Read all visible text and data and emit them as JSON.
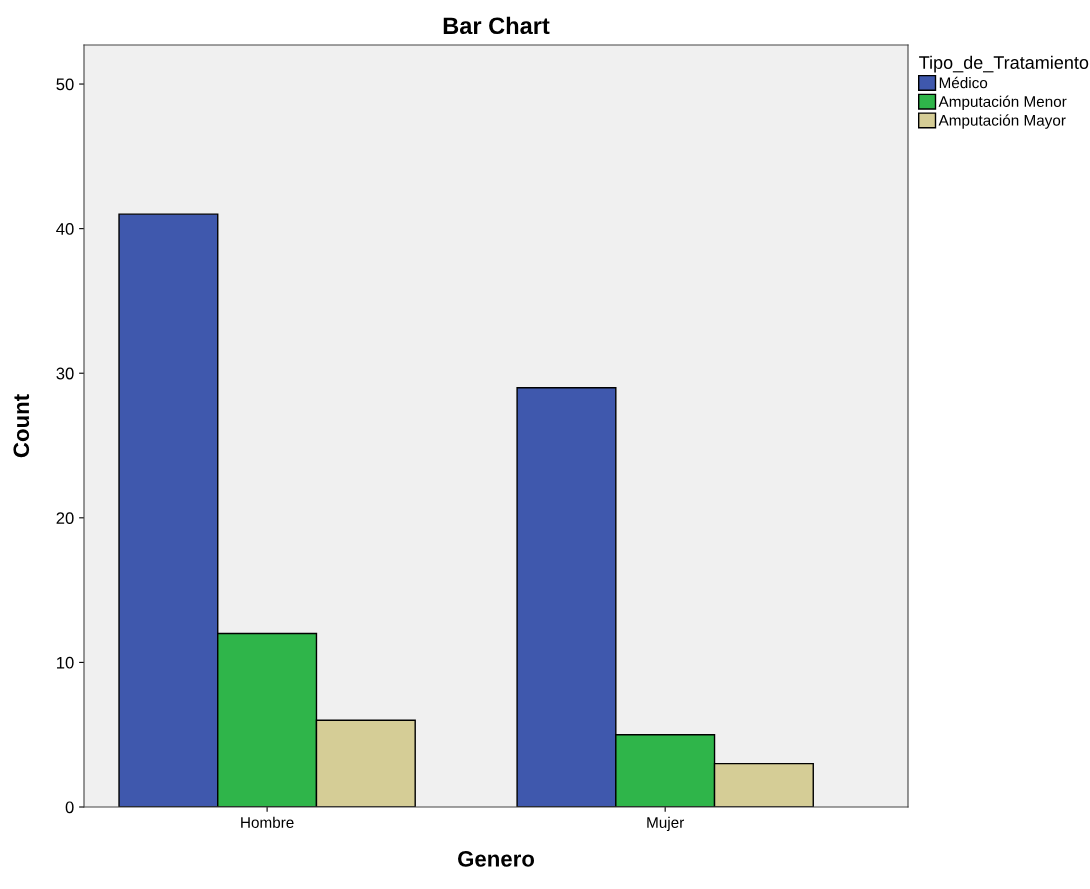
{
  "chart_data": {
    "type": "bar",
    "title": "Bar Chart",
    "xlabel": "Genero",
    "ylabel": "Count",
    "legend_title": "Tipo_de_Tratamiento",
    "categories": [
      "Hombre",
      "Mujer"
    ],
    "series": [
      {
        "name": "Médico",
        "color": "#3f58ad",
        "values": [
          41,
          29
        ]
      },
      {
        "name": "Amputación Menor",
        "color": "#2fb54a",
        "values": [
          12,
          5
        ]
      },
      {
        "name": "Amputación Mayor",
        "color": "#d5cd96",
        "values": [
          6,
          3
        ]
      }
    ],
    "ylim": [
      0,
      52.7
    ],
    "yticks": [
      0,
      10,
      20,
      30,
      40,
      50
    ],
    "grid": false,
    "legend": "top right"
  }
}
